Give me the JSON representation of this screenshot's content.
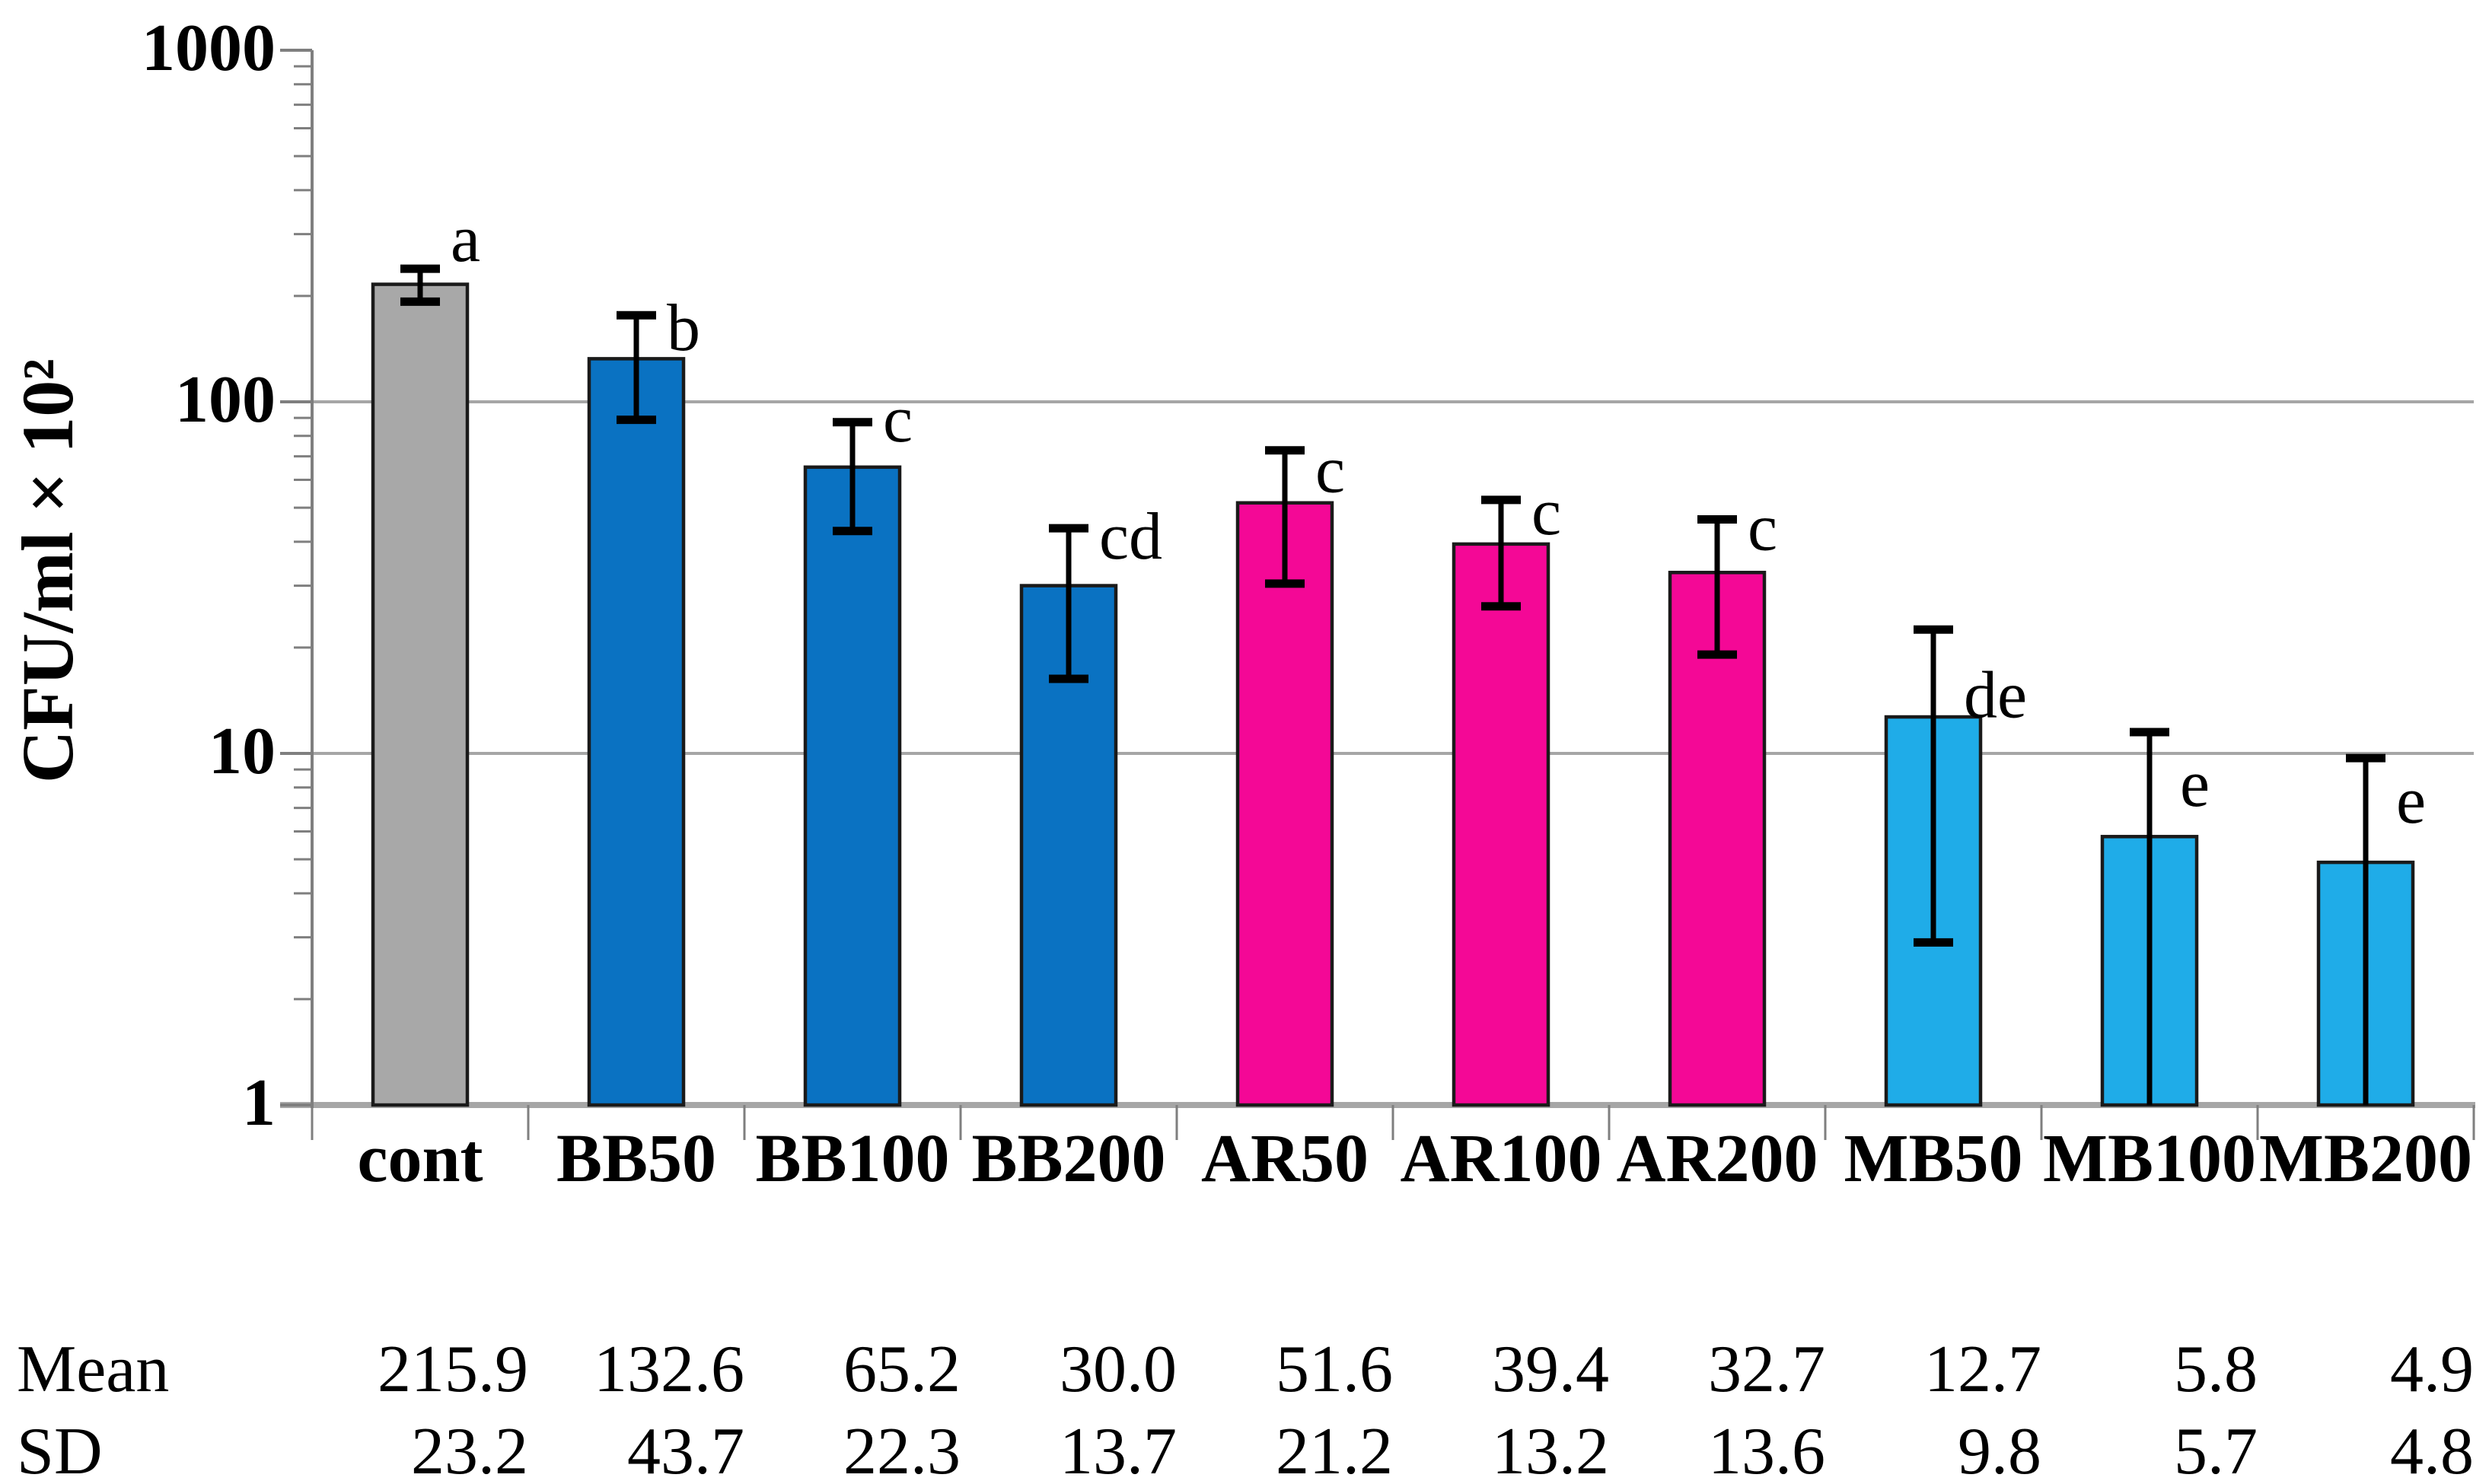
{
  "chart_data": {
    "type": "bar",
    "title": "",
    "ylabel": "CFU/ml × 10²",
    "yscale": "log",
    "ylim": [
      1,
      1000
    ],
    "yticks": [
      {
        "value": 1000,
        "label": "1000"
      },
      {
        "value": 100,
        "label": "100"
      },
      {
        "value": 10,
        "label": "10"
      },
      {
        "value": 1,
        "label": "1"
      }
    ],
    "grid": "horizontal gridlines at 10 and 100, log minor ticks on y-axis",
    "legend": "none",
    "categories": [
      "cont",
      "BB50",
      "BB100",
      "BB200",
      "AR50",
      "AR100",
      "AR200",
      "MB50",
      "MB100",
      "MB200"
    ],
    "groups": [
      "cont",
      "BB",
      "BB",
      "BB",
      "AR",
      "AR",
      "AR",
      "MB",
      "MB",
      "MB"
    ],
    "series": [
      {
        "name": "Mean",
        "values": [
          215.9,
          132.6,
          65.2,
          30.0,
          51.6,
          39.4,
          32.7,
          12.7,
          5.8,
          4.9
        ]
      },
      {
        "name": "SD",
        "values": [
          23.2,
          43.7,
          22.3,
          13.7,
          21.2,
          13.2,
          13.6,
          9.8,
          5.7,
          4.8
        ]
      }
    ],
    "significance_letters": [
      "a",
      "b",
      "c",
      "cd",
      "c",
      "c",
      "c",
      "de",
      "e",
      "e"
    ],
    "palette": {
      "cont": "#A8A8A8",
      "BB": "#0A72C2",
      "AR": "#F40896",
      "MB": "#1FACE8"
    },
    "bar_outline_color": "#1A1A1A",
    "error_bar_color": "#000000",
    "axis_color": "#7F7F7F",
    "gridline_color": "#A6A6A6",
    "table": {
      "row_labels": [
        "Mean",
        "SD"
      ]
    },
    "layout_hints": {
      "letter_dx": 40,
      "letter_dy": [
        -10,
        46,
        25,
        40,
        55,
        45,
        40,
        115,
        97,
        85
      ],
      "legend_position": "none",
      "error_bars": "mean ± SD, clipped at axis minimum"
    }
  }
}
